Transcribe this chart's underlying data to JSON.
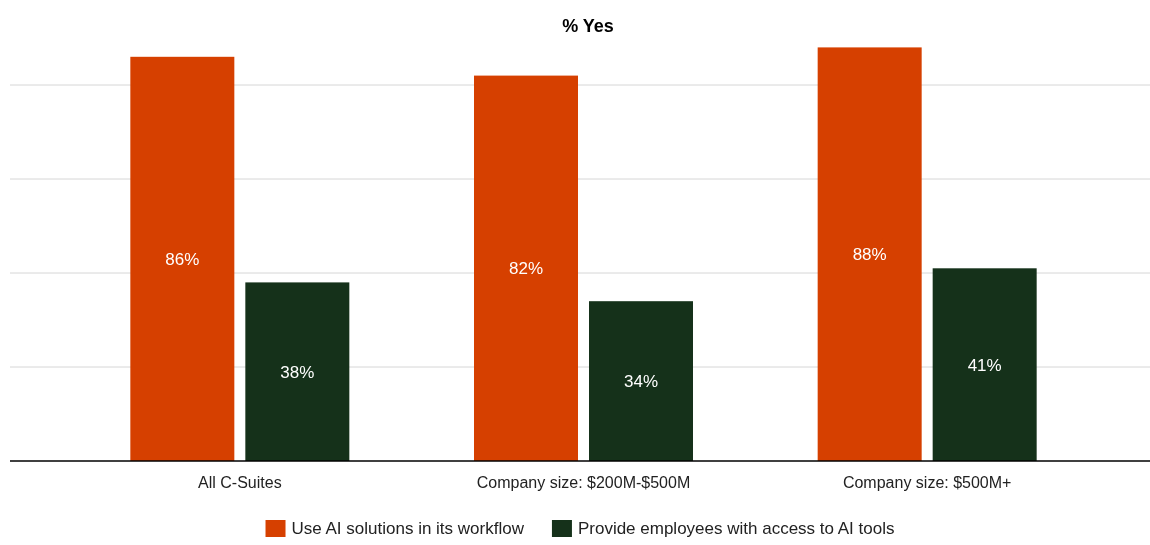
{
  "chart_data": {
    "type": "bar",
    "title": "% Yes",
    "categories": [
      "All C-Suites",
      "Company size: $200M-$500M",
      "Company size: $500M+"
    ],
    "series": [
      {
        "name": "Use AI solutions in its workflow",
        "color": "#d64000",
        "values": [
          86,
          82,
          88
        ],
        "value_labels": [
          "86%",
          "82%",
          "88%"
        ]
      },
      {
        "name": "Provide employees with access to AI tools",
        "color": "#15311a",
        "values": [
          38,
          34,
          41
        ],
        "value_labels": [
          "38%",
          "34%",
          "41%"
        ]
      }
    ],
    "tick_labels": "x",
    "grid": "y",
    "legend": "bottom"
  }
}
